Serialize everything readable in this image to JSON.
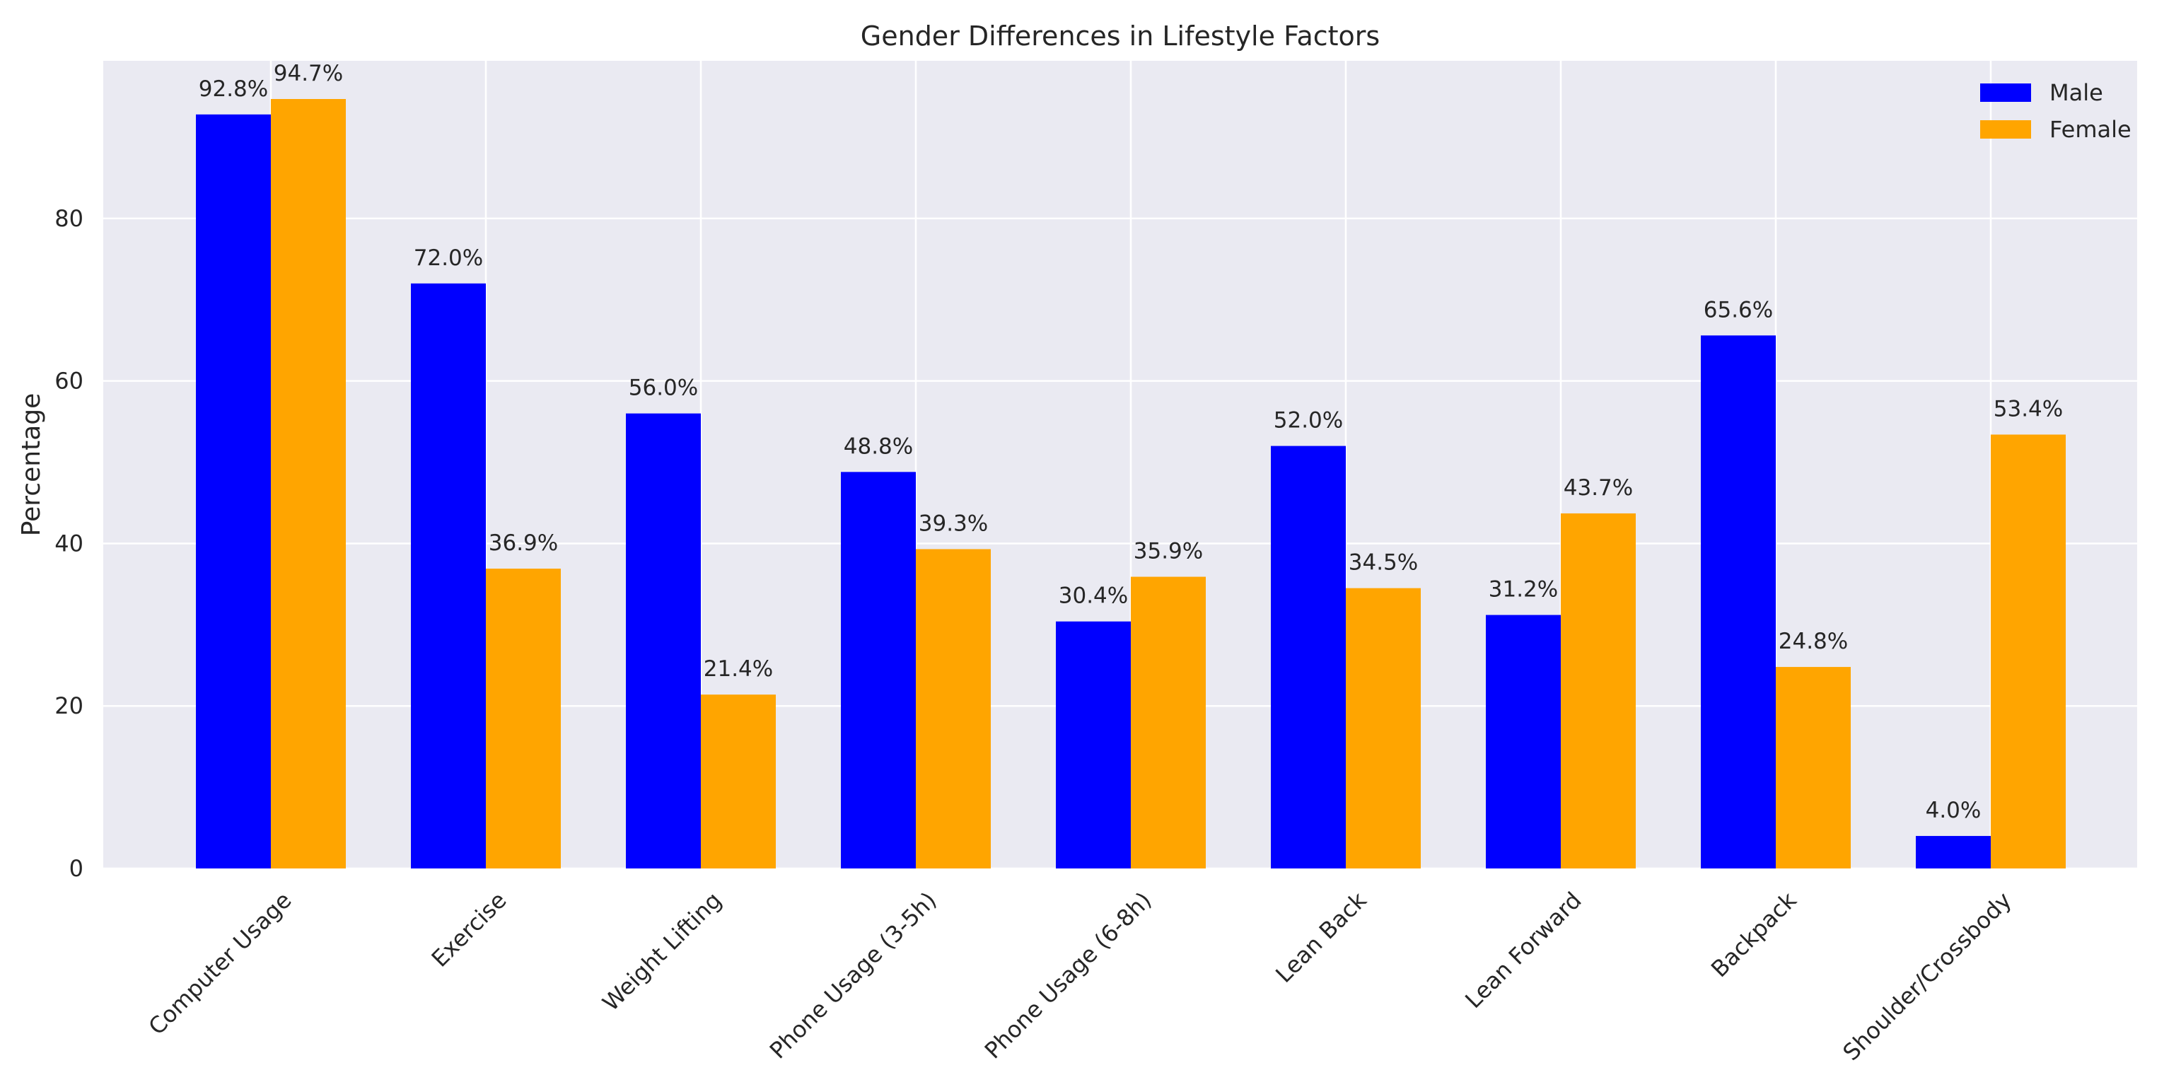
{
  "chart_data": {
    "type": "bar",
    "title": "Gender Differences in Lifestyle Factors",
    "xlabel": "",
    "ylabel": "Percentage",
    "categories": [
      "Computer Usage",
      "Exercise",
      "Weight Lifting",
      "Phone Usage (3-5h)",
      "Phone Usage (6-8h)",
      "Lean Back",
      "Lean Forward",
      "Backpack",
      "Shoulder/Crossbody"
    ],
    "series": [
      {
        "name": "Male",
        "color": "#0000ff",
        "values": [
          92.8,
          72.0,
          56.0,
          48.8,
          30.4,
          52.0,
          31.2,
          65.6,
          4.0
        ]
      },
      {
        "name": "Female",
        "color": "#ffa500",
        "values": [
          94.7,
          36.9,
          21.4,
          39.3,
          35.9,
          34.5,
          43.7,
          24.8,
          53.4
        ]
      }
    ],
    "ylim": [
      0,
      99.4
    ],
    "yticks": [
      0,
      20,
      40,
      60,
      80
    ],
    "value_label_suffix": "%",
    "value_label_decimals": 1,
    "grid": true,
    "legend_position": "top-right",
    "colors": {
      "plot_background": "#eaeaf2",
      "grid": "#ffffff",
      "text": "#262626"
    }
  }
}
